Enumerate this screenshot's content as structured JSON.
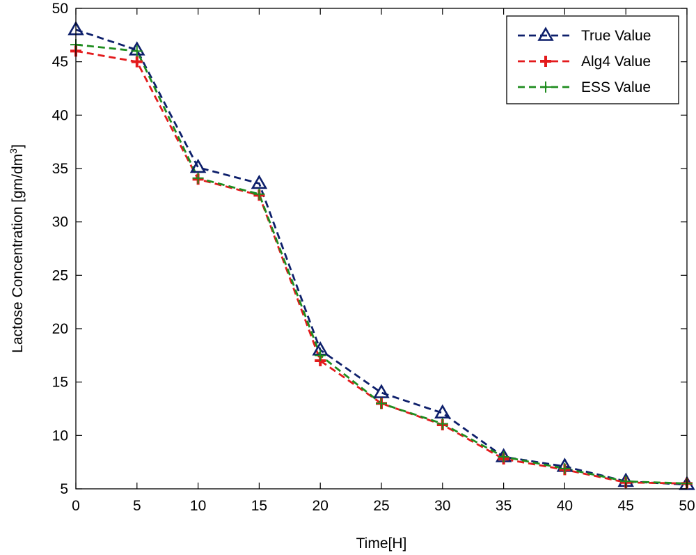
{
  "chart_data": {
    "type": "line",
    "title": "",
    "xlabel": "Time[H]",
    "ylabel_main": "Lactose Concentration [gm/dm",
    "ylabel_sup": "3",
    "ylabel_close": "]",
    "xlim": [
      0,
      50
    ],
    "ylim": [
      5,
      50
    ],
    "xticks": [
      0,
      5,
      10,
      15,
      20,
      25,
      30,
      35,
      40,
      45,
      50
    ],
    "yticks": [
      5,
      10,
      15,
      20,
      25,
      30,
      35,
      40,
      45,
      50
    ],
    "xtick_labels": [
      "0",
      "5",
      "10",
      "15",
      "20",
      "25",
      "30",
      "35",
      "40",
      "45",
      "50"
    ],
    "ytick_labels": [
      "5",
      "10",
      "15",
      "20",
      "25",
      "30",
      "35",
      "40",
      "45",
      "50"
    ],
    "grid": false,
    "legend_position": "top-right",
    "x": [
      0,
      5,
      10,
      15,
      20,
      25,
      30,
      35,
      40,
      45,
      50
    ],
    "series": [
      {
        "name": "True Value",
        "color": "#0d1f6b",
        "marker": "triangle",
        "values": [
          48,
          46.1,
          35.1,
          33.6,
          18,
          14,
          12.1,
          8,
          7.1,
          5.7,
          5.4
        ]
      },
      {
        "name": "Alg4 Value",
        "color": "#e31a1c",
        "marker": "plus-bold",
        "values": [
          46,
          45,
          34,
          32.5,
          17,
          13,
          11,
          7.8,
          6.8,
          5.6,
          5.5
        ]
      },
      {
        "name": "ESS Value",
        "color": "#1e8c1e",
        "marker": "plus",
        "values": [
          46.6,
          46,
          34.1,
          32.6,
          17.5,
          13,
          11.1,
          8,
          6.9,
          5.7,
          5.5
        ]
      }
    ]
  }
}
